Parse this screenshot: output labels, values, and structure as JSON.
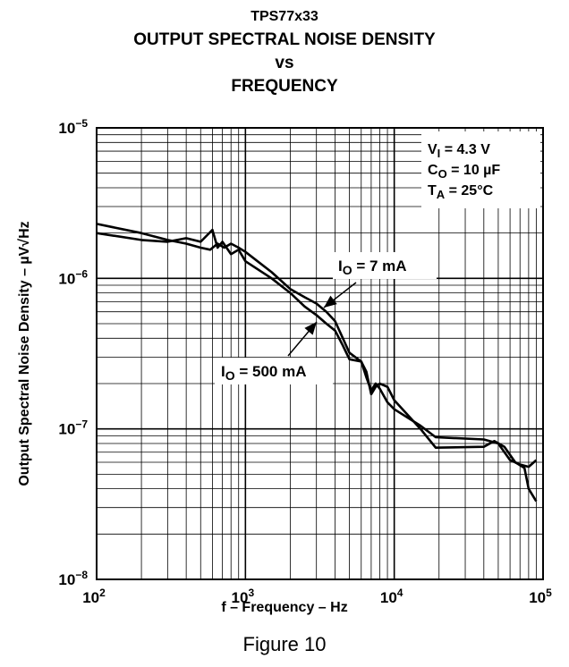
{
  "chart_data": {
    "type": "line",
    "title_lines": [
      "TPS77x33",
      "OUTPUT SPECTRAL NOISE DENSITY",
      "vs",
      "FREQUENCY"
    ],
    "xlabel": "f – Frequency – Hz",
    "ylabel": "Output Spectral Noise Density – µV√Hz",
    "x_scale": "log",
    "y_scale": "log",
    "xlim": [
      100,
      100000
    ],
    "ylim": [
      1e-08,
      1e-05
    ],
    "grid": true,
    "x_ticks": [
      {
        "base": "10",
        "exp": "2"
      },
      {
        "base": "10",
        "exp": "3"
      },
      {
        "base": "10",
        "exp": "4"
      },
      {
        "base": "10",
        "exp": "5"
      }
    ],
    "y_ticks": [
      {
        "base": "10",
        "exp": "−8"
      },
      {
        "base": "10",
        "exp": "−7"
      },
      {
        "base": "10",
        "exp": "−6"
      },
      {
        "base": "10",
        "exp": "−5"
      }
    ],
    "conditions": [
      {
        "main": "V",
        "sub": "I",
        "rest": " = 4.3 V"
      },
      {
        "main": "C",
        "sub": "O",
        "rest": " = 10 µF"
      },
      {
        "main": "T",
        "sub": "A",
        "rest": " = 25°C"
      }
    ],
    "series": [
      {
        "name": "IO = 7 mA",
        "label": {
          "main": "I",
          "sub": "O",
          "rest": " = 7 mA"
        },
        "x": [
          100,
          200,
          300,
          400,
          500,
          580,
          650,
          720,
          800,
          900,
          1000,
          1500,
          2000,
          2500,
          3000,
          3500,
          4000,
          5000,
          6000,
          6500,
          7000,
          7500,
          8000,
          9000,
          10000,
          15000,
          19000,
          40000,
          50000,
          60000,
          70000,
          80000,
          90000
        ],
        "y": [
          2.3e-06,
          2e-06,
          1.8e-06,
          1.7e-06,
          1.6e-06,
          1.55e-06,
          1.7e-06,
          1.6e-06,
          1.7e-06,
          1.6e-06,
          1.5e-06,
          1.1e-06,
          8.5e-07,
          7.5e-07,
          6.8e-07,
          6e-07,
          5.2e-07,
          3.2e-07,
          2.8e-07,
          2.2e-07,
          1.8e-07,
          2e-07,
          1.85e-07,
          1.5e-07,
          1.35e-07,
          1.05e-07,
          8.8e-08,
          8.5e-08,
          8e-08,
          6.2e-08,
          5.8e-08,
          5.6e-08,
          6.2e-08
        ]
      },
      {
        "name": "IO = 500 mA",
        "label": {
          "main": "I",
          "sub": "O",
          "rest": " = 500 mA"
        },
        "x": [
          100,
          200,
          300,
          400,
          500,
          600,
          650,
          700,
          800,
          900,
          1000,
          1500,
          2000,
          2500,
          3000,
          3500,
          4000,
          4500,
          5000,
          6000,
          6500,
          7000,
          7500,
          8000,
          9000,
          10000,
          15000,
          19000,
          40000,
          47000,
          55000,
          65000,
          75000,
          80000,
          90000
        ],
        "y": [
          2e-06,
          1.8e-06,
          1.75e-06,
          1.85e-06,
          1.75e-06,
          2.1e-06,
          1.6e-06,
          1.75e-06,
          1.45e-06,
          1.55e-06,
          1.3e-06,
          1e-06,
          8e-07,
          6.5e-07,
          5.7e-07,
          5e-07,
          4.5e-07,
          3.6e-07,
          2.9e-07,
          2.8e-07,
          2.4e-07,
          1.7e-07,
          1.9e-07,
          2e-07,
          1.9e-07,
          1.55e-07,
          1e-07,
          7.5e-08,
          7.6e-08,
          8.3e-08,
          7.6e-08,
          6e-08,
          5.5e-08,
          4e-08,
          3.3e-08
        ]
      }
    ]
  },
  "figure_label": "Figure 10"
}
